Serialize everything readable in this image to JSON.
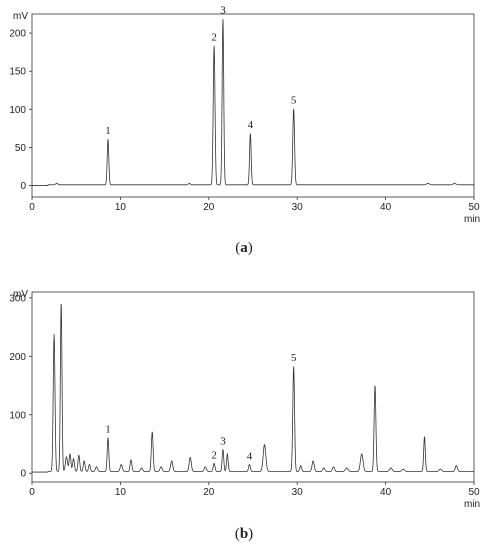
{
  "chart_data": [
    {
      "type": "line",
      "caption_pre": "(",
      "caption_letter": "a",
      "caption_post": ")",
      "y_unit": "mV",
      "x_unit": "min",
      "xlim": [
        0,
        50
      ],
      "ylim": [
        -15,
        225
      ],
      "x_ticks": [
        0,
        10,
        20,
        30,
        40,
        50
      ],
      "y_ticks": [
        0,
        50,
        100,
        150,
        200
      ],
      "baseline": 1,
      "peaks": [
        {
          "x": 2.8,
          "y": 2,
          "w": 0.12
        },
        {
          "x": 8.6,
          "y": 60,
          "w": 0.09,
          "label": "1"
        },
        {
          "x": 17.8,
          "y": 2,
          "w": 0.1
        },
        {
          "x": 20.6,
          "y": 183,
          "w": 0.1,
          "label": "2"
        },
        {
          "x": 21.6,
          "y": 218,
          "w": 0.09,
          "label": "3"
        },
        {
          "x": 24.7,
          "y": 68,
          "w": 0.09,
          "label": "4"
        },
        {
          "x": 29.6,
          "y": 100,
          "w": 0.1,
          "label": "5"
        },
        {
          "x": 44.8,
          "y": 2,
          "w": 0.15
        },
        {
          "x": 47.8,
          "y": 2,
          "w": 0.15
        }
      ]
    },
    {
      "type": "line",
      "caption_pre": "(",
      "caption_letter": "b",
      "caption_post": ")",
      "y_unit": "mV",
      "x_unit": "min",
      "xlim": [
        0,
        50
      ],
      "ylim": [
        -15,
        310
      ],
      "x_ticks": [
        0,
        10,
        20,
        30,
        40,
        50
      ],
      "y_ticks": [
        0,
        100,
        200,
        300
      ],
      "baseline": 3,
      "peaks": [
        {
          "x": 2.5,
          "y": 235,
          "w": 0.1
        },
        {
          "x": 3.3,
          "y": 290,
          "w": 0.09
        },
        {
          "x": 3.9,
          "y": 25,
          "w": 0.12
        },
        {
          "x": 4.3,
          "y": 30,
          "w": 0.1
        },
        {
          "x": 4.7,
          "y": 22,
          "w": 0.1
        },
        {
          "x": 5.3,
          "y": 28,
          "w": 0.1
        },
        {
          "x": 5.9,
          "y": 18,
          "w": 0.1
        },
        {
          "x": 6.5,
          "y": 12,
          "w": 0.1
        },
        {
          "x": 7.3,
          "y": 8,
          "w": 0.12
        },
        {
          "x": 8.6,
          "y": 58,
          "w": 0.09,
          "label": "1"
        },
        {
          "x": 10.1,
          "y": 12,
          "w": 0.12
        },
        {
          "x": 11.2,
          "y": 20,
          "w": 0.1
        },
        {
          "x": 12.4,
          "y": 6,
          "w": 0.12
        },
        {
          "x": 13.6,
          "y": 68,
          "w": 0.1
        },
        {
          "x": 14.6,
          "y": 8,
          "w": 0.12
        },
        {
          "x": 15.8,
          "y": 18,
          "w": 0.12
        },
        {
          "x": 17.9,
          "y": 24,
          "w": 0.12
        },
        {
          "x": 19.6,
          "y": 8,
          "w": 0.12
        },
        {
          "x": 20.6,
          "y": 14,
          "w": 0.1,
          "label": "2"
        },
        {
          "x": 21.6,
          "y": 38,
          "w": 0.09,
          "label": "3"
        },
        {
          "x": 22.1,
          "y": 30,
          "w": 0.09
        },
        {
          "x": 24.6,
          "y": 12,
          "w": 0.1,
          "label": "4"
        },
        {
          "x": 26.3,
          "y": 46,
          "w": 0.15
        },
        {
          "x": 29.6,
          "y": 180,
          "w": 0.1,
          "label": "5"
        },
        {
          "x": 30.4,
          "y": 10,
          "w": 0.1
        },
        {
          "x": 31.8,
          "y": 18,
          "w": 0.12
        },
        {
          "x": 33.0,
          "y": 6,
          "w": 0.12
        },
        {
          "x": 34.1,
          "y": 8,
          "w": 0.12
        },
        {
          "x": 35.6,
          "y": 6,
          "w": 0.15
        },
        {
          "x": 37.3,
          "y": 30,
          "w": 0.15
        },
        {
          "x": 38.8,
          "y": 148,
          "w": 0.1
        },
        {
          "x": 40.6,
          "y": 6,
          "w": 0.15
        },
        {
          "x": 42.0,
          "y": 4,
          "w": 0.15
        },
        {
          "x": 44.4,
          "y": 60,
          "w": 0.09
        },
        {
          "x": 46.2,
          "y": 4,
          "w": 0.15
        },
        {
          "x": 48.0,
          "y": 10,
          "w": 0.12
        }
      ]
    }
  ]
}
